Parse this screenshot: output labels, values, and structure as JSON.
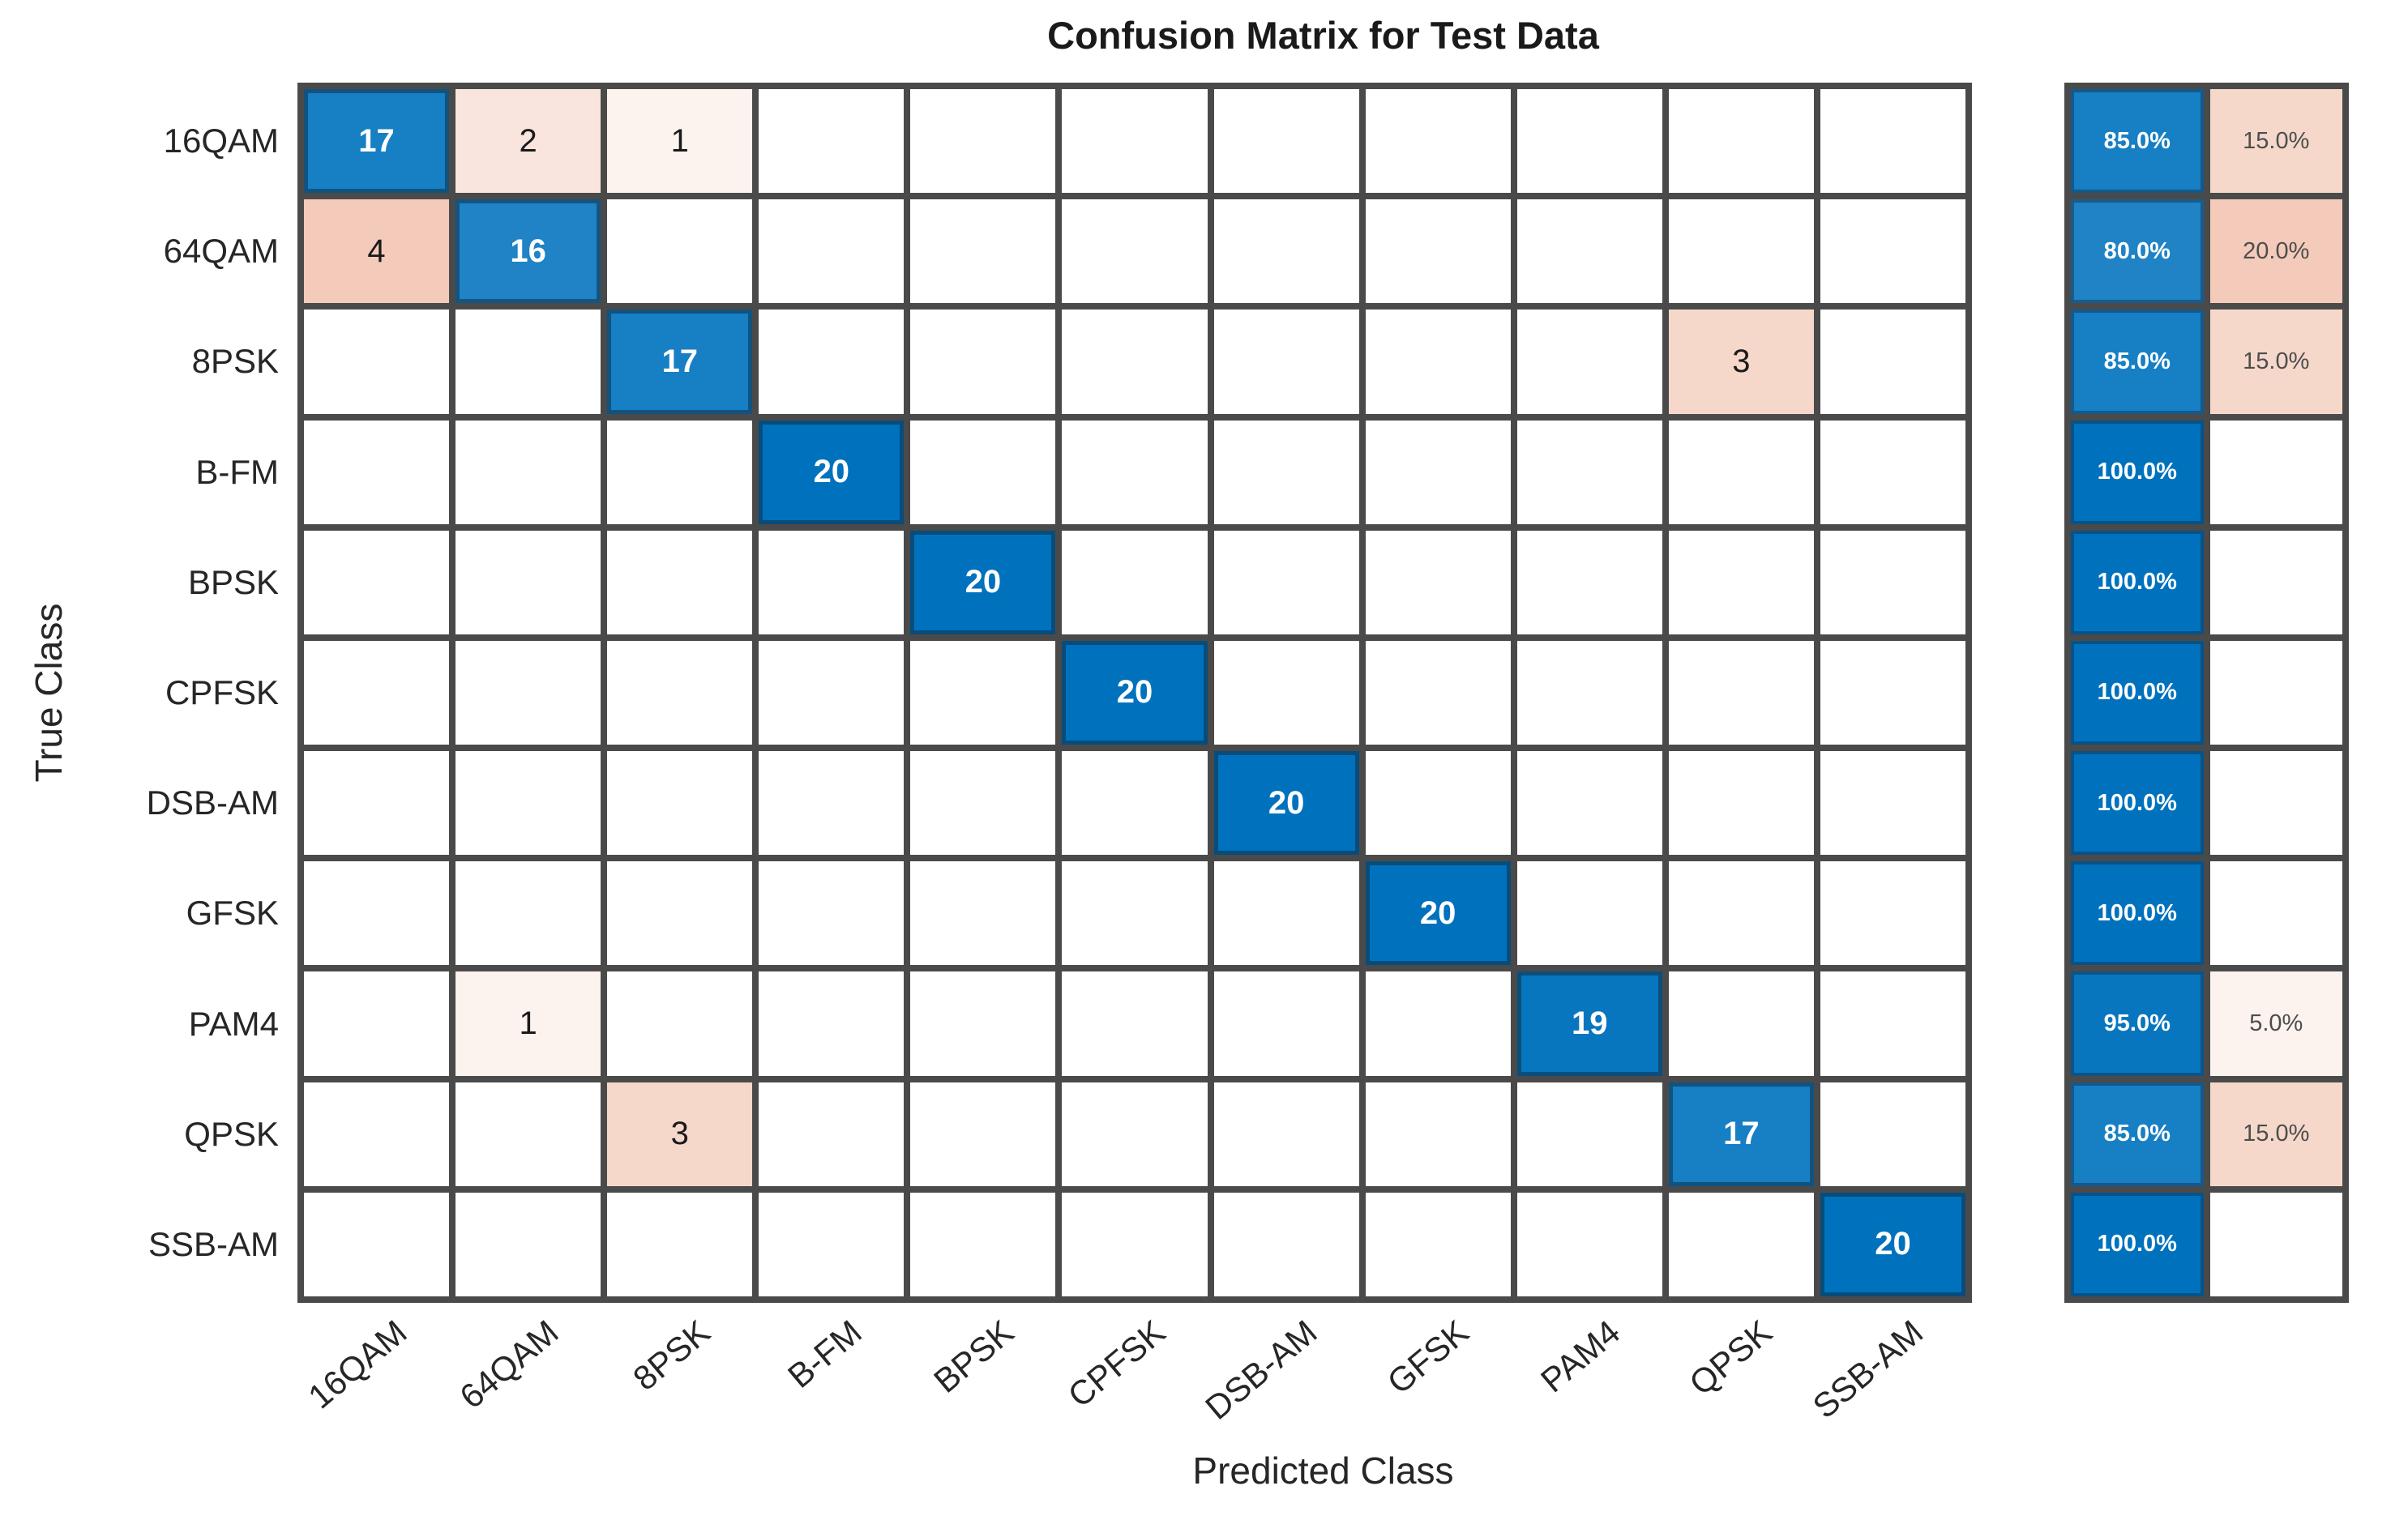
{
  "chart_data": {
    "type": "heatmap",
    "subtype": "confusion_matrix",
    "title": "Confusion Matrix for Test Data",
    "xlabel": "Predicted Class",
    "ylabel": "True Class",
    "classes": [
      "16QAM",
      "64QAM",
      "8PSK",
      "B-FM",
      "BPSK",
      "CPFSK",
      "DSB-AM",
      "GFSK",
      "PAM4",
      "QPSK",
      "SSB-AM"
    ],
    "matrix": [
      [
        17,
        2,
        1,
        0,
        0,
        0,
        0,
        0,
        0,
        0,
        0
      ],
      [
        4,
        16,
        0,
        0,
        0,
        0,
        0,
        0,
        0,
        0,
        0
      ],
      [
        0,
        0,
        17,
        0,
        0,
        0,
        0,
        0,
        0,
        3,
        0
      ],
      [
        0,
        0,
        0,
        20,
        0,
        0,
        0,
        0,
        0,
        0,
        0
      ],
      [
        0,
        0,
        0,
        0,
        20,
        0,
        0,
        0,
        0,
        0,
        0
      ],
      [
        0,
        0,
        0,
        0,
        0,
        20,
        0,
        0,
        0,
        0,
        0
      ],
      [
        0,
        0,
        0,
        0,
        0,
        0,
        20,
        0,
        0,
        0,
        0
      ],
      [
        0,
        0,
        0,
        0,
        0,
        0,
        0,
        20,
        0,
        0,
        0
      ],
      [
        0,
        1,
        0,
        0,
        0,
        0,
        0,
        0,
        19,
        0,
        0
      ],
      [
        0,
        0,
        3,
        0,
        0,
        0,
        0,
        0,
        0,
        17,
        0
      ],
      [
        0,
        0,
        0,
        0,
        0,
        0,
        0,
        0,
        0,
        0,
        20
      ]
    ],
    "row_summary": [
      {
        "correct": "85.0%",
        "incorrect": "15.0%"
      },
      {
        "correct": "80.0%",
        "incorrect": "20.0%"
      },
      {
        "correct": "85.0%",
        "incorrect": "15.0%"
      },
      {
        "correct": "100.0%",
        "incorrect": ""
      },
      {
        "correct": "100.0%",
        "incorrect": ""
      },
      {
        "correct": "100.0%",
        "incorrect": ""
      },
      {
        "correct": "100.0%",
        "incorrect": ""
      },
      {
        "correct": "100.0%",
        "incorrect": ""
      },
      {
        "correct": "95.0%",
        "incorrect": "5.0%"
      },
      {
        "correct": "85.0%",
        "incorrect": "15.0%"
      },
      {
        "correct": "100.0%",
        "incorrect": ""
      }
    ],
    "colors": {
      "diagonal": "#0072BD",
      "off_diagonal": "#D95319",
      "grid_line": "#4a4a4a",
      "background": "#ffffff"
    },
    "layout": {
      "grid_on": true,
      "x_tick_rotation_deg": -40,
      "summary_columns": "row-normalized percentages (correct | incorrect)"
    }
  }
}
